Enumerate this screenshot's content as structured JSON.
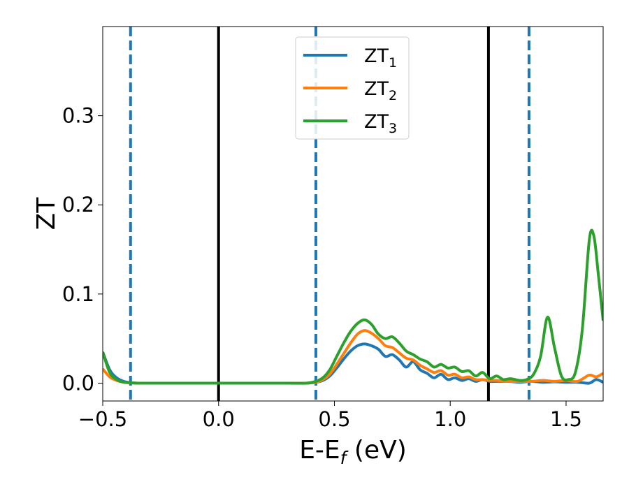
{
  "chart_data": {
    "type": "line",
    "xlabel": {
      "main": "E-E",
      "sub": "f",
      "tail": " (eV)"
    },
    "ylabel": "ZT",
    "xlim": [
      -0.5,
      1.66
    ],
    "ylim": [
      -0.02,
      0.4
    ],
    "xticks": [
      -0.5,
      0.0,
      0.5,
      1.0,
      1.5
    ],
    "xtick_labels": [
      "−0.5",
      "0.0",
      "0.5",
      "1.0",
      "1.5"
    ],
    "yticks": [
      0.0,
      0.1,
      0.2,
      0.3
    ],
    "ytick_labels": [
      "0.0",
      "0.1",
      "0.2",
      "0.3"
    ],
    "grid": false,
    "legend_position": "top-center",
    "vlines_solid": [
      0.0,
      1.165
    ],
    "vlines_dashed": [
      -0.38,
      0.42,
      1.34
    ],
    "vline_solid_color": "#000000",
    "vline_dashed_color": "#1f77b4",
    "series": [
      {
        "name": "ZT",
        "sub": "1",
        "color": "#1f77b4",
        "x": [
          -0.5,
          -0.47,
          -0.44,
          -0.41,
          -0.38,
          -0.35,
          -0.3,
          -0.2,
          -0.1,
          0.0,
          0.1,
          0.2,
          0.3,
          0.38,
          0.42,
          0.45,
          0.48,
          0.51,
          0.54,
          0.57,
          0.6,
          0.63,
          0.66,
          0.69,
          0.72,
          0.75,
          0.78,
          0.81,
          0.84,
          0.87,
          0.9,
          0.93,
          0.96,
          0.99,
          1.02,
          1.05,
          1.08,
          1.11,
          1.14,
          1.17,
          1.2,
          1.25,
          1.3,
          1.35,
          1.4,
          1.45,
          1.5,
          1.55,
          1.6,
          1.63,
          1.66
        ],
        "y": [
          0.035,
          0.015,
          0.006,
          0.002,
          0.0005,
          0,
          0,
          0,
          0,
          0,
          0,
          0,
          0,
          0,
          0.001,
          0.003,
          0.008,
          0.017,
          0.027,
          0.036,
          0.042,
          0.044,
          0.042,
          0.038,
          0.03,
          0.032,
          0.026,
          0.018,
          0.024,
          0.015,
          0.011,
          0.006,
          0.01,
          0.004,
          0.006,
          0.003,
          0.005,
          0.002,
          0.004,
          0.002,
          0.002,
          0.002,
          0.001,
          0.002,
          0.001,
          0.0015,
          0.001,
          0.001,
          0,
          0.004,
          0.001
        ]
      },
      {
        "name": "ZT",
        "sub": "2",
        "color": "#ff7f0e",
        "x": [
          -0.5,
          -0.47,
          -0.44,
          -0.41,
          -0.38,
          -0.35,
          -0.3,
          -0.2,
          -0.1,
          0.0,
          0.1,
          0.2,
          0.3,
          0.38,
          0.42,
          0.45,
          0.48,
          0.51,
          0.54,
          0.57,
          0.6,
          0.63,
          0.66,
          0.69,
          0.72,
          0.75,
          0.78,
          0.81,
          0.84,
          0.87,
          0.9,
          0.93,
          0.96,
          0.99,
          1.02,
          1.05,
          1.08,
          1.11,
          1.14,
          1.17,
          1.2,
          1.25,
          1.3,
          1.35,
          1.4,
          1.45,
          1.5,
          1.55,
          1.6,
          1.63,
          1.66
        ],
        "y": [
          0.016,
          0.007,
          0.003,
          0.001,
          0.0005,
          0,
          0,
          0,
          0,
          0,
          0,
          0,
          0,
          0,
          0.001,
          0.004,
          0.01,
          0.021,
          0.033,
          0.045,
          0.055,
          0.059,
          0.056,
          0.05,
          0.042,
          0.04,
          0.034,
          0.028,
          0.026,
          0.02,
          0.016,
          0.012,
          0.014,
          0.009,
          0.01,
          0.006,
          0.007,
          0.004,
          0.004,
          0.003,
          0.003,
          0.002,
          0.002,
          0.002,
          0.003,
          0.002,
          0.003,
          0.002,
          0.009,
          0.007,
          0.011
        ]
      },
      {
        "name": "ZT",
        "sub": "3",
        "color": "#2ca02c",
        "x": [
          -0.5,
          -0.47,
          -0.44,
          -0.41,
          -0.38,
          -0.35,
          -0.3,
          -0.2,
          -0.1,
          0.0,
          0.1,
          0.2,
          0.3,
          0.38,
          0.42,
          0.45,
          0.48,
          0.51,
          0.54,
          0.57,
          0.6,
          0.63,
          0.66,
          0.69,
          0.72,
          0.75,
          0.78,
          0.81,
          0.84,
          0.87,
          0.9,
          0.93,
          0.96,
          0.99,
          1.02,
          1.05,
          1.08,
          1.11,
          1.14,
          1.17,
          1.2,
          1.23,
          1.26,
          1.3,
          1.33,
          1.36,
          1.39,
          1.42,
          1.45,
          1.48,
          1.51,
          1.54,
          1.57,
          1.6,
          1.62,
          1.64,
          1.66
        ],
        "y": [
          0.035,
          0.012,
          0.004,
          0.001,
          0.0005,
          0,
          0,
          0,
          0,
          0,
          0,
          0,
          0,
          0,
          0.002,
          0.006,
          0.015,
          0.03,
          0.045,
          0.058,
          0.067,
          0.071,
          0.066,
          0.055,
          0.05,
          0.052,
          0.045,
          0.036,
          0.032,
          0.027,
          0.024,
          0.018,
          0.021,
          0.017,
          0.018,
          0.013,
          0.014,
          0.008,
          0.012,
          0.005,
          0.008,
          0.004,
          0.005,
          0.003,
          0.004,
          0.01,
          0.03,
          0.074,
          0.04,
          0.008,
          0.004,
          0.012,
          0.06,
          0.16,
          0.165,
          0.12,
          0.07
        ]
      }
    ]
  }
}
